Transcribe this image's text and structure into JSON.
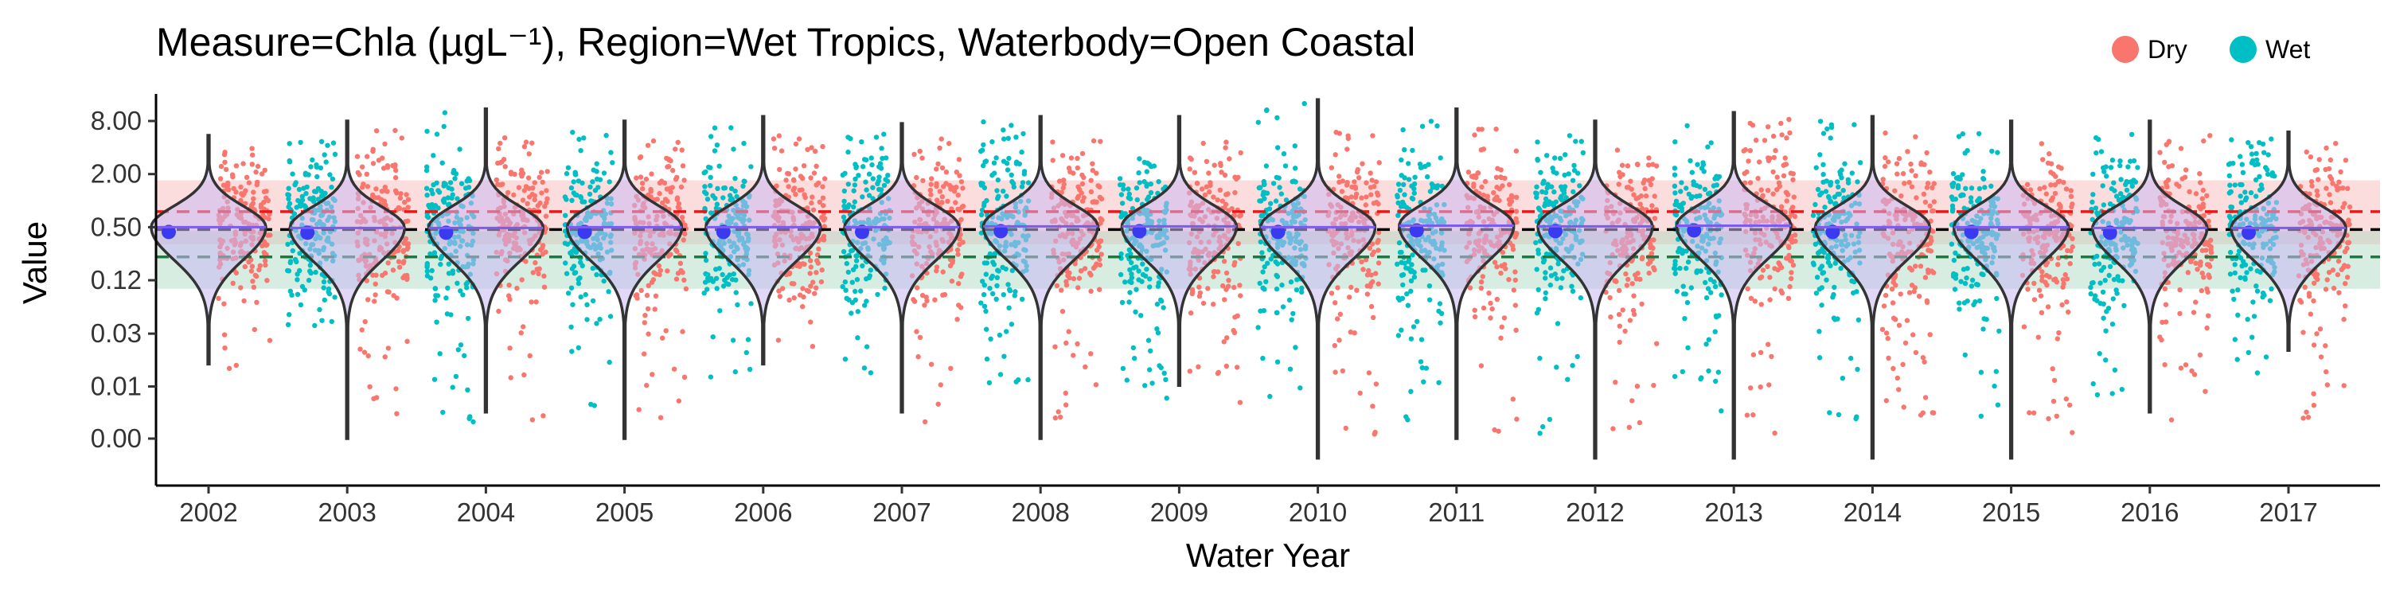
{
  "chart_data": {
    "type": "violin-jitter",
    "title": "Measure=Chla (µgL⁻¹), Region=Wet Tropics, Waterbody=Open Coastal",
    "xlabel": "Water Year",
    "ylabel": "Value",
    "y_scale": "log",
    "y_ticks": [
      "8.00",
      "2.00",
      "0.50",
      "0.12",
      "0.03",
      "0.01",
      "0.00"
    ],
    "y_tick_values": [
      8.0,
      2.0,
      0.5,
      0.125,
      0.031,
      0.0078,
      0.002
    ],
    "categories": [
      "2002",
      "2003",
      "2004",
      "2005",
      "2006",
      "2007",
      "2008",
      "2009",
      "2010",
      "2011",
      "2012",
      "2013",
      "2014",
      "2015",
      "2016",
      "2017"
    ],
    "legend": {
      "position": "top-right",
      "entries": [
        {
          "name": "Dry",
          "color": "#F8766D"
        },
        {
          "name": "Wet",
          "color": "#00BFC4"
        }
      ]
    },
    "reference_lines": [
      {
        "value": 0.75,
        "color": "#E41A1C",
        "style": "dashed",
        "band": [
          0.32,
          1.7
        ],
        "band_color": "#F8B4B4"
      },
      {
        "value": 0.47,
        "color": "#000000",
        "style": "dashed"
      },
      {
        "value": 0.23,
        "color": "#1B7A3E",
        "style": "dashed",
        "band": [
          0.1,
          0.45
        ],
        "band_color": "#A8D8BF"
      }
    ],
    "medians": [
      0.5,
      0.49,
      0.49,
      0.5,
      0.5,
      0.5,
      0.51,
      0.51,
      0.5,
      0.52,
      0.51,
      0.52,
      0.5,
      0.5,
      0.49,
      0.49
    ],
    "violin_min": [
      0.014,
      0.002,
      0.004,
      0.002,
      0.014,
      0.004,
      0.002,
      0.008,
      0.0012,
      0.002,
      0.0012,
      0.0012,
      0.0012,
      0.0012,
      0.004,
      0.02
    ],
    "violin_max": [
      5.5,
      8.0,
      11.0,
      8.0,
      9.0,
      7.5,
      9.0,
      9.0,
      14.0,
      11.0,
      8.0,
      10.0,
      9.0,
      8.0,
      8.0,
      6.0
    ],
    "series": [
      {
        "name": "Dry",
        "color": "#F8766D",
        "present": [
          true,
          true,
          true,
          true,
          true,
          true,
          true,
          true,
          true,
          true,
          true,
          true,
          true,
          true,
          true,
          true
        ],
        "range": [
          [
            0.01,
            5
          ],
          [
            0.003,
            7
          ],
          [
            0.003,
            6
          ],
          [
            0.003,
            7
          ],
          [
            0.01,
            6
          ],
          [
            0.003,
            5
          ],
          [
            0.003,
            6
          ],
          [
            0.005,
            5
          ],
          [
            0.002,
            6
          ],
          [
            0.002,
            8
          ],
          [
            0.002,
            6
          ],
          [
            0.002,
            9
          ],
          [
            0.002,
            6
          ],
          [
            0.002,
            7
          ],
          [
            0.003,
            6
          ],
          [
            0.003,
            5
          ]
        ]
      },
      {
        "name": "Wet",
        "color": "#00BFC4",
        "present": [
          false,
          true,
          true,
          true,
          true,
          true,
          true,
          true,
          true,
          true,
          true,
          true,
          true,
          true,
          true,
          true
        ],
        "range": [
          [
            0.1,
            1
          ],
          [
            0.02,
            5
          ],
          [
            0.003,
            11
          ],
          [
            0.004,
            6
          ],
          [
            0.008,
            8
          ],
          [
            0.01,
            6
          ],
          [
            0.005,
            8
          ],
          [
            0.005,
            8
          ],
          [
            0.003,
            14
          ],
          [
            0.003,
            9
          ],
          [
            0.002,
            6
          ],
          [
            0.004,
            8
          ],
          [
            0.003,
            8
          ],
          [
            0.003,
            7
          ],
          [
            0.005,
            6
          ],
          [
            0.01,
            5
          ]
        ]
      }
    ]
  }
}
